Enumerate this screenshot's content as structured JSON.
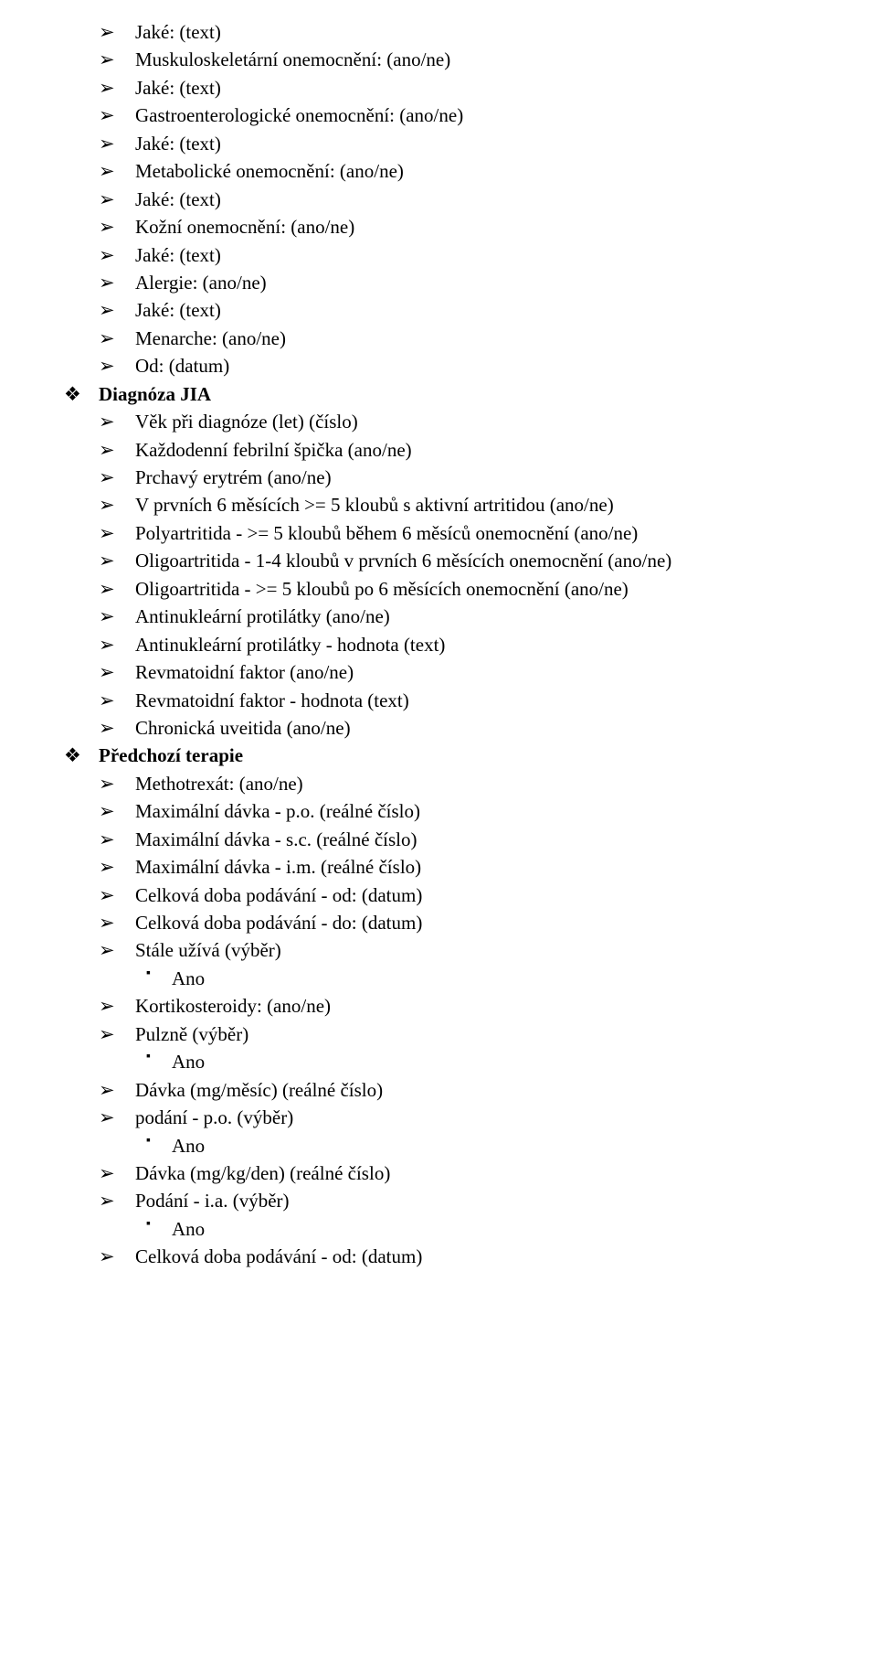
{
  "top_items": [
    "Jaké: (text)",
    "Muskuloskeletární onemocnění: (ano/ne)",
    "Jaké: (text)",
    "Gastroenterologické onemocnění: (ano/ne)",
    "Jaké: (text)",
    "Metabolické onemocnění: (ano/ne)",
    "Jaké: (text)",
    "Kožní onemocnění: (ano/ne)",
    "Jaké: (text)",
    "Alergie: (ano/ne)",
    "Jaké: (text)",
    "Menarche: (ano/ne)",
    "Od: (datum)"
  ],
  "sections": [
    {
      "label": "Diagnóza JIA",
      "items": [
        {
          "text": "Věk při diagnóze (let) (číslo)"
        },
        {
          "text": "Každodenní febrilní špička (ano/ne)"
        },
        {
          "text": "Prchavý erytrém (ano/ne)"
        },
        {
          "text": "V prvních 6 měsících >= 5 kloubů s aktivní artritidou (ano/ne)"
        },
        {
          "text": "Polyartritida - >= 5 kloubů během 6 měsíců onemocnění (ano/ne)"
        },
        {
          "text": "Oligoartritida - 1-4 kloubů v prvních 6 měsících onemocnění (ano/ne)"
        },
        {
          "text": "Oligoartritida - >= 5 kloubů po 6 měsících onemocnění (ano/ne)"
        },
        {
          "text": "Antinukleární protilátky (ano/ne)"
        },
        {
          "text": "Antinukleární protilátky - hodnota (text)"
        },
        {
          "text": "Revmatoidní faktor (ano/ne)"
        },
        {
          "text": "Revmatoidní faktor - hodnota (text)"
        },
        {
          "text": "Chronická uveitida (ano/ne)"
        }
      ]
    },
    {
      "label": "Předchozí terapie",
      "items": [
        {
          "text": "Methotrexát: (ano/ne)"
        },
        {
          "text": "Maximální dávka - p.o. (reálné číslo)"
        },
        {
          "text": "Maximální dávka - s.c. (reálné číslo)"
        },
        {
          "text": "Maximální dávka - i.m. (reálné číslo)"
        },
        {
          "text": "Celková doba podávání - od: (datum)"
        },
        {
          "text": "Celková doba podávání - do: (datum)"
        },
        {
          "text": "Stále užívá (výběr)",
          "sub": [
            "Ano"
          ]
        },
        {
          "text": "Kortikosteroidy: (ano/ne)"
        },
        {
          "text": "Pulzně (výběr)",
          "sub": [
            "Ano"
          ]
        },
        {
          "text": "Dávka (mg/měsíc) (reálné číslo)"
        },
        {
          "text": "podání - p.o. (výběr)",
          "sub": [
            "Ano"
          ]
        },
        {
          "text": "Dávka (mg/kg/den) (reálné číslo)"
        },
        {
          "text": "Podání - i.a. (výběr)",
          "sub": [
            "Ano"
          ]
        },
        {
          "text": "Celková doba podávání - od: (datum)"
        }
      ]
    }
  ]
}
